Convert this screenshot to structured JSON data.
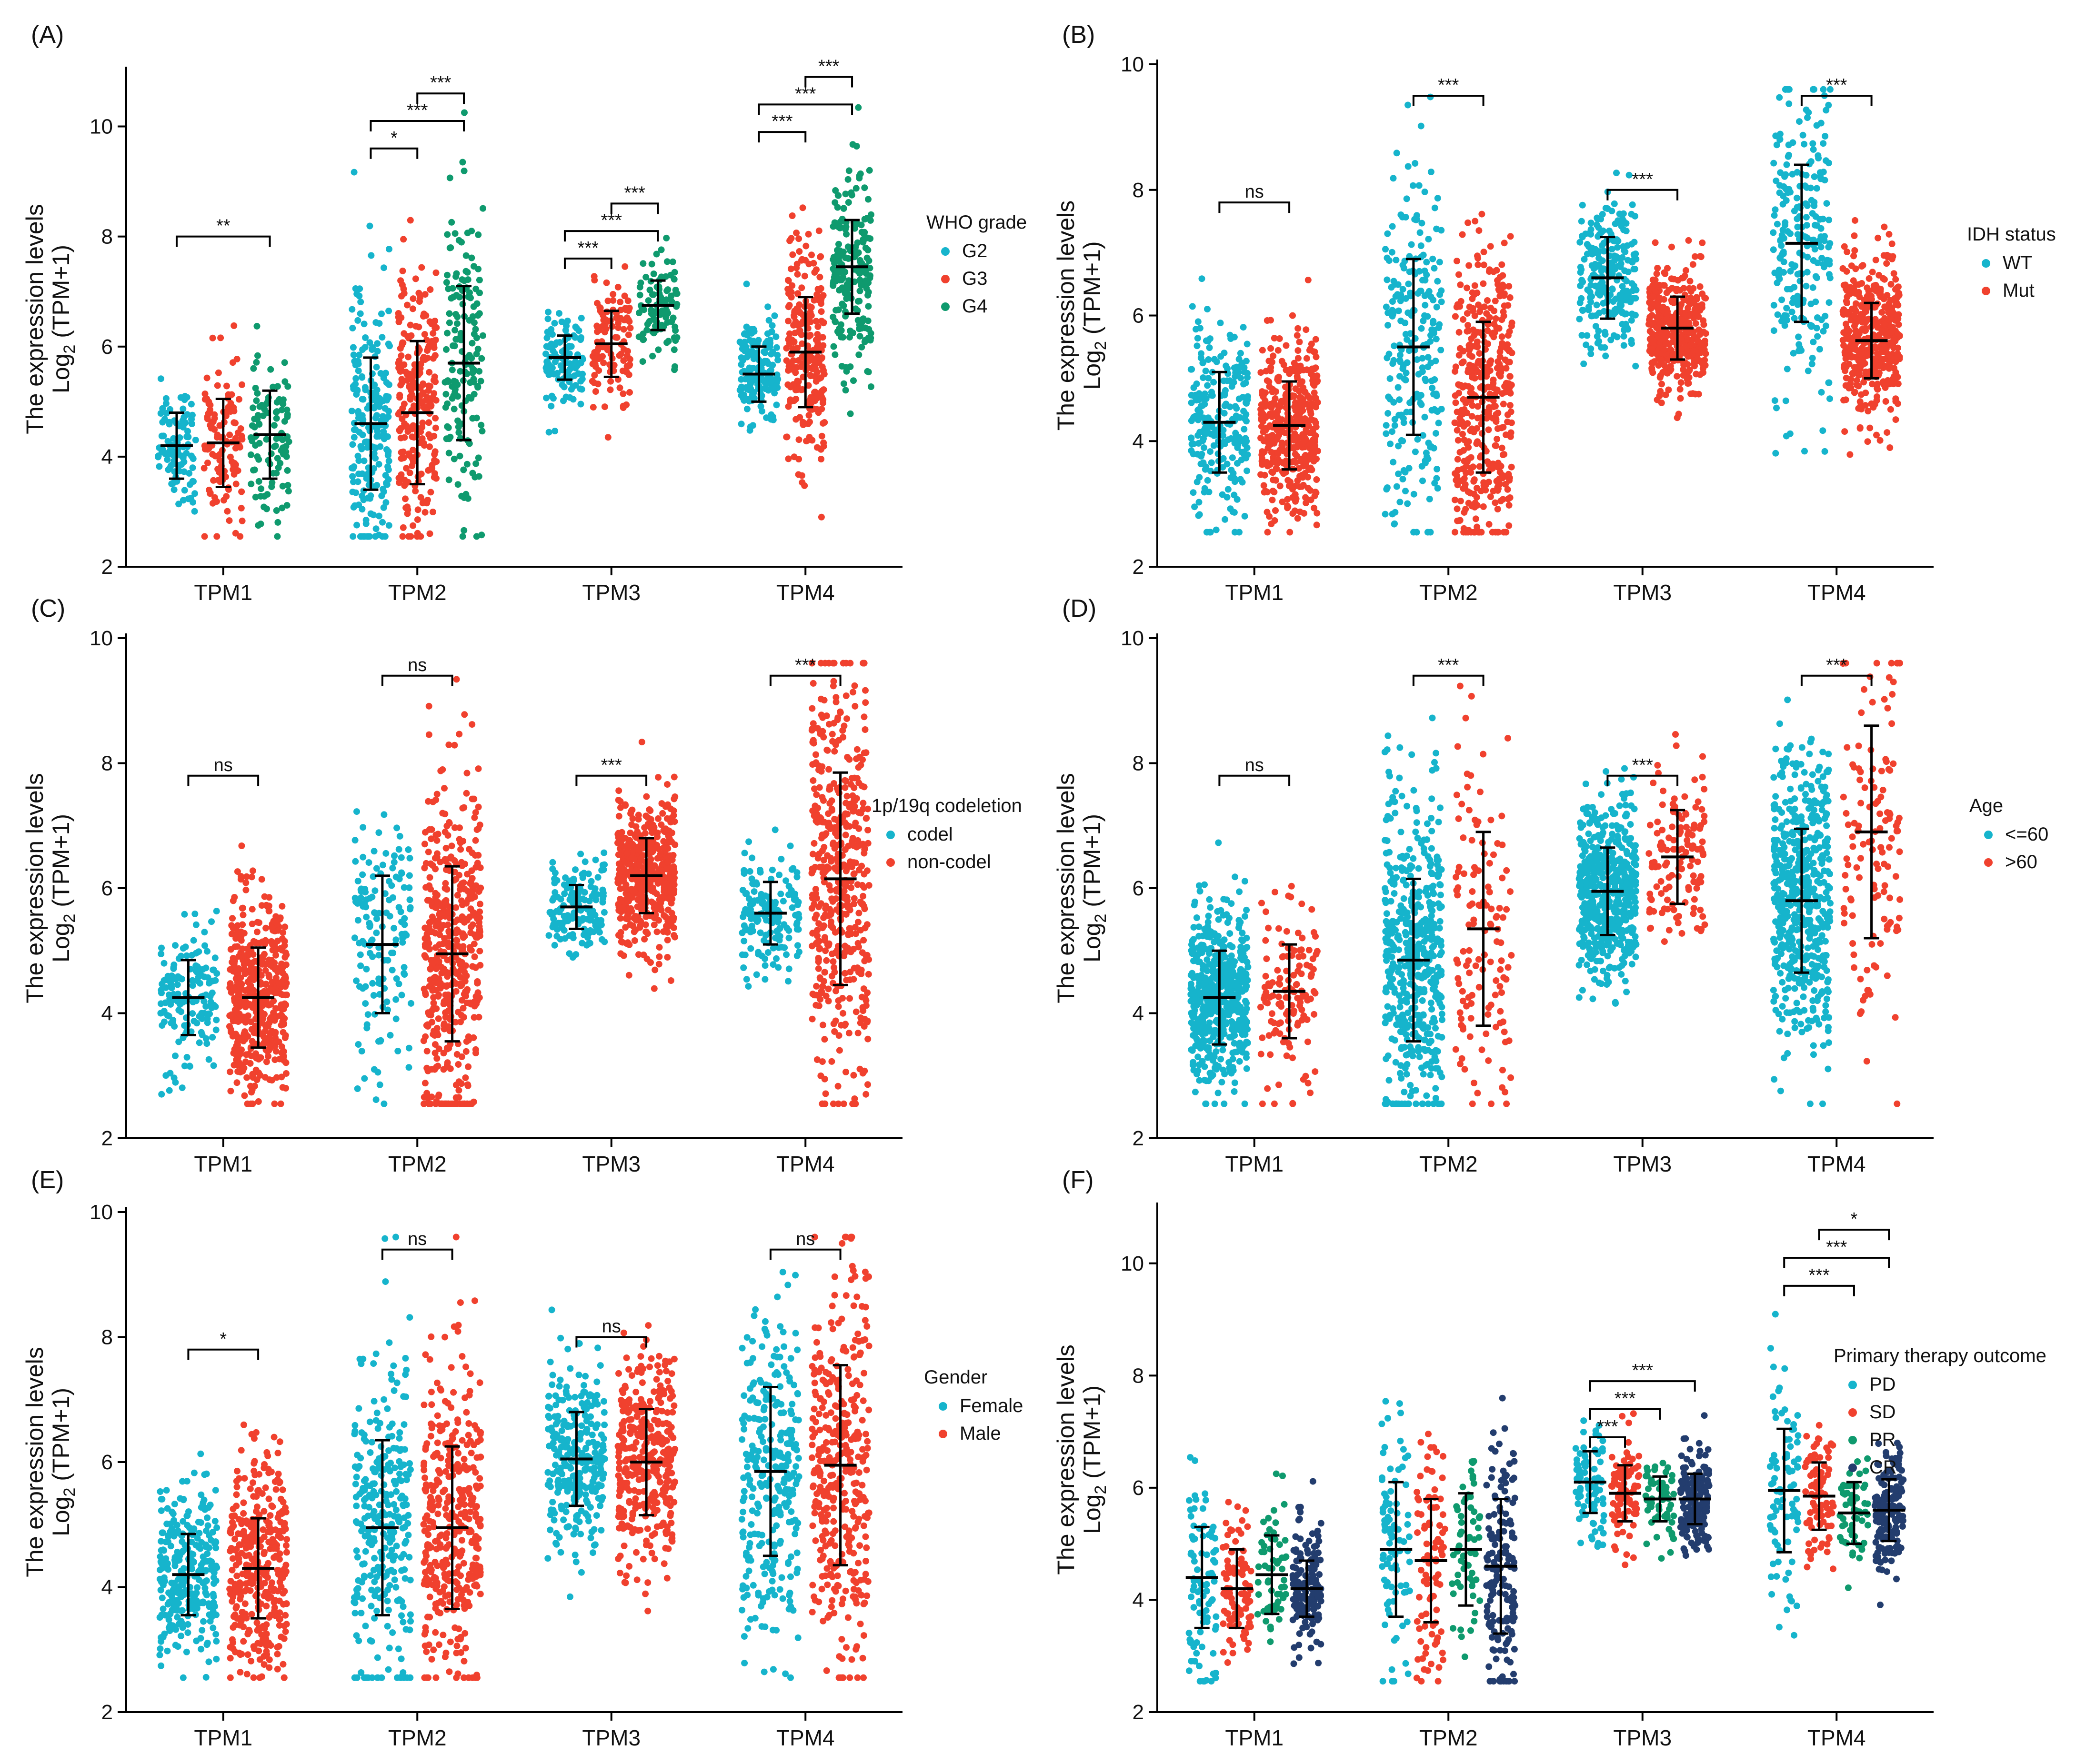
{
  "figure": {
    "type": "scatter",
    "ylabel_line1": "The expression levels",
    "ylabel_log": "Log",
    "ylabel_sub": "2",
    "ylabel_tail": " (TPM+1)",
    "colors": {
      "teal": "#16b4cc",
      "red": "#f0412e",
      "green": "#0f9a6e",
      "navy": "#233d6e",
      "errorbar": "#000000"
    }
  },
  "chart_data": [
    {
      "type": "scatter",
      "panel": "(A)",
      "categories": [
        "TPM1",
        "TPM2",
        "TPM3",
        "TPM4"
      ],
      "ylim": [
        2,
        11
      ],
      "yticks": [
        2,
        4,
        6,
        8,
        10
      ],
      "legend_title": "WHO grade",
      "series": [
        {
          "name": "G2",
          "color": "#16b4cc",
          "mean": [
            4.2,
            4.6,
            5.8,
            5.5
          ],
          "sd": [
            0.6,
            1.2,
            0.4,
            0.5
          ],
          "n": [
            100,
            220,
            110,
            160
          ]
        },
        {
          "name": "G3",
          "color": "#f0412e",
          "mean": [
            4.25,
            4.8,
            6.05,
            5.9
          ],
          "sd": [
            0.8,
            1.3,
            0.6,
            1.0
          ],
          "n": [
            120,
            240,
            120,
            240
          ]
        },
        {
          "name": "G4",
          "color": "#0f9a6e",
          "mean": [
            4.4,
            5.7,
            6.75,
            7.45
          ],
          "sd": [
            0.8,
            1.4,
            0.45,
            0.85
          ],
          "n": [
            100,
            160,
            100,
            200
          ]
        }
      ],
      "comparisons": [
        {
          "cat": 0,
          "from": 0,
          "to": 2,
          "y": 8.0,
          "label": "**"
        },
        {
          "cat": 1,
          "from": 0,
          "to": 1,
          "y": 9.6,
          "label": "*"
        },
        {
          "cat": 1,
          "from": 0,
          "to": 2,
          "y": 10.1,
          "label": "***"
        },
        {
          "cat": 1,
          "from": 1,
          "to": 2,
          "y": 10.6,
          "label": "***"
        },
        {
          "cat": 2,
          "from": 0,
          "to": 1,
          "y": 7.6,
          "label": "***"
        },
        {
          "cat": 2,
          "from": 0,
          "to": 2,
          "y": 8.1,
          "label": "***"
        },
        {
          "cat": 2,
          "from": 1,
          "to": 2,
          "y": 8.6,
          "label": "***"
        },
        {
          "cat": 3,
          "from": 0,
          "to": 1,
          "y": 9.9,
          "label": "***"
        },
        {
          "cat": 3,
          "from": 0,
          "to": 2,
          "y": 10.4,
          "label": "***"
        },
        {
          "cat": 3,
          "from": 1,
          "to": 2,
          "y": 10.9,
          "label": "***"
        }
      ]
    },
    {
      "type": "scatter",
      "panel": "(B)",
      "categories": [
        "TPM1",
        "TPM2",
        "TPM3",
        "TPM4"
      ],
      "ylim": [
        2,
        10
      ],
      "yticks": [
        2,
        4,
        6,
        8,
        10
      ],
      "legend_title": "IDH status",
      "series": [
        {
          "name": "WT",
          "color": "#16b4cc",
          "mean": [
            4.3,
            5.5,
            6.6,
            7.15
          ],
          "sd": [
            0.8,
            1.4,
            0.65,
            1.25
          ],
          "n": [
            240,
            240,
            240,
            240
          ]
        },
        {
          "name": "Mut",
          "color": "#f0412e",
          "mean": [
            4.25,
            4.7,
            5.8,
            5.6
          ],
          "sd": [
            0.7,
            1.2,
            0.5,
            0.6
          ],
          "n": [
            400,
            400,
            400,
            400
          ]
        }
      ],
      "comparisons": [
        {
          "cat": 0,
          "from": 0,
          "to": 1,
          "y": 7.8,
          "label": "ns"
        },
        {
          "cat": 1,
          "from": 0,
          "to": 1,
          "y": 9.5,
          "label": "***"
        },
        {
          "cat": 2,
          "from": 0,
          "to": 1,
          "y": 8.0,
          "label": "***"
        },
        {
          "cat": 3,
          "from": 0,
          "to": 1,
          "y": 9.5,
          "label": "***"
        }
      ]
    },
    {
      "type": "scatter",
      "panel": "(C)",
      "categories": [
        "TPM1",
        "TPM2",
        "TPM3",
        "TPM4"
      ],
      "ylim": [
        2,
        10
      ],
      "yticks": [
        2,
        4,
        6,
        8,
        10
      ],
      "legend_title": "1p/19q codeletion",
      "series": [
        {
          "name": "codel",
          "color": "#16b4cc",
          "mean": [
            4.25,
            5.1,
            5.7,
            5.6
          ],
          "sd": [
            0.6,
            1.1,
            0.35,
            0.5
          ],
          "n": [
            150,
            150,
            150,
            150
          ]
        },
        {
          "name": "non-codel",
          "color": "#f0412e",
          "mean": [
            4.25,
            4.95,
            6.2,
            6.15
          ],
          "sd": [
            0.8,
            1.4,
            0.6,
            1.7
          ],
          "n": [
            480,
            480,
            480,
            480
          ]
        }
      ],
      "comparisons": [
        {
          "cat": 0,
          "from": 0,
          "to": 1,
          "y": 7.8,
          "label": "ns"
        },
        {
          "cat": 1,
          "from": 0,
          "to": 1,
          "y": 9.4,
          "label": "ns"
        },
        {
          "cat": 2,
          "from": 0,
          "to": 1,
          "y": 7.8,
          "label": "***"
        },
        {
          "cat": 3,
          "from": 0,
          "to": 1,
          "y": 9.4,
          "label": "***"
        }
      ]
    },
    {
      "type": "scatter",
      "panel": "(D)",
      "categories": [
        "TPM1",
        "TPM2",
        "TPM3",
        "TPM4"
      ],
      "ylim": [
        2,
        10
      ],
      "yticks": [
        2,
        4,
        6,
        8,
        10
      ],
      "legend_title": "Age",
      "series": [
        {
          "name": "<=60",
          "color": "#16b4cc",
          "mean": [
            4.25,
            4.85,
            5.95,
            5.8
          ],
          "sd": [
            0.75,
            1.3,
            0.7,
            1.15
          ],
          "n": [
            520,
            520,
            520,
            520
          ]
        },
        {
          "name": ">60",
          "color": "#f0412e",
          "mean": [
            4.35,
            5.35,
            6.5,
            6.9
          ],
          "sd": [
            0.75,
            1.55,
            0.75,
            1.7
          ],
          "n": [
            130,
            130,
            130,
            130
          ]
        }
      ],
      "comparisons": [
        {
          "cat": 0,
          "from": 0,
          "to": 1,
          "y": 7.8,
          "label": "ns"
        },
        {
          "cat": 1,
          "from": 0,
          "to": 1,
          "y": 9.4,
          "label": "***"
        },
        {
          "cat": 2,
          "from": 0,
          "to": 1,
          "y": 7.8,
          "label": "***"
        },
        {
          "cat": 3,
          "from": 0,
          "to": 1,
          "y": 9.4,
          "label": "***"
        }
      ]
    },
    {
      "type": "scatter",
      "panel": "(E)",
      "categories": [
        "TPM1",
        "TPM2",
        "TPM3",
        "TPM4"
      ],
      "ylim": [
        2,
        10
      ],
      "yticks": [
        2,
        4,
        6,
        8,
        10
      ],
      "legend_title": "Gender",
      "series": [
        {
          "name": "Female",
          "color": "#16b4cc",
          "mean": [
            4.2,
            4.95,
            6.05,
            5.85
          ],
          "sd": [
            0.65,
            1.4,
            0.75,
            1.35
          ],
          "n": [
            290,
            290,
            290,
            290
          ]
        },
        {
          "name": "Male",
          "color": "#f0412e",
          "mean": [
            4.3,
            4.95,
            6.0,
            5.95
          ],
          "sd": [
            0.8,
            1.3,
            0.85,
            1.6
          ],
          "n": [
            370,
            370,
            370,
            370
          ]
        }
      ],
      "comparisons": [
        {
          "cat": 0,
          "from": 0,
          "to": 1,
          "y": 7.8,
          "label": "*"
        },
        {
          "cat": 1,
          "from": 0,
          "to": 1,
          "y": 9.4,
          "label": "ns"
        },
        {
          "cat": 2,
          "from": 0,
          "to": 1,
          "y": 8.0,
          "label": "ns"
        },
        {
          "cat": 3,
          "from": 0,
          "to": 1,
          "y": 9.4,
          "label": "ns"
        }
      ]
    },
    {
      "type": "scatter",
      "panel": "(F)",
      "categories": [
        "TPM1",
        "TPM2",
        "TPM3",
        "TPM4"
      ],
      "ylim": [
        2,
        11
      ],
      "yticks": [
        2,
        4,
        6,
        8,
        10
      ],
      "legend_title": "Primary therapy outcome",
      "series": [
        {
          "name": "PD",
          "color": "#16b4cc",
          "mean": [
            4.4,
            4.9,
            6.1,
            5.95
          ],
          "sd": [
            0.9,
            1.2,
            0.55,
            1.1
          ],
          "n": [
            90,
            90,
            90,
            90
          ]
        },
        {
          "name": "SD",
          "color": "#f0412e",
          "mean": [
            4.2,
            4.7,
            5.9,
            5.85
          ],
          "sd": [
            0.7,
            1.1,
            0.5,
            0.6
          ],
          "n": [
            90,
            90,
            90,
            90
          ]
        },
        {
          "name": "PR",
          "color": "#0f9a6e",
          "mean": [
            4.45,
            4.9,
            5.8,
            5.55
          ],
          "sd": [
            0.7,
            1.0,
            0.4,
            0.55
          ],
          "n": [
            60,
            60,
            60,
            60
          ]
        },
        {
          "name": "CR",
          "color": "#233d6e",
          "mean": [
            4.2,
            4.6,
            5.8,
            5.6
          ],
          "sd": [
            0.5,
            1.2,
            0.45,
            0.55
          ],
          "n": [
            160,
            160,
            160,
            160
          ]
        }
      ],
      "comparisons": [
        {
          "cat": 2,
          "from": 0,
          "to": 1,
          "y": 6.9,
          "label": "***"
        },
        {
          "cat": 2,
          "from": 0,
          "to": 2,
          "y": 7.4,
          "label": "***"
        },
        {
          "cat": 2,
          "from": 0,
          "to": 3,
          "y": 7.9,
          "label": "***"
        },
        {
          "cat": 3,
          "from": 0,
          "to": 2,
          "y": 9.6,
          "label": "***"
        },
        {
          "cat": 3,
          "from": 0,
          "to": 3,
          "y": 10.1,
          "label": "***"
        },
        {
          "cat": 3,
          "from": 1,
          "to": 3,
          "y": 10.6,
          "label": "*"
        }
      ]
    }
  ]
}
